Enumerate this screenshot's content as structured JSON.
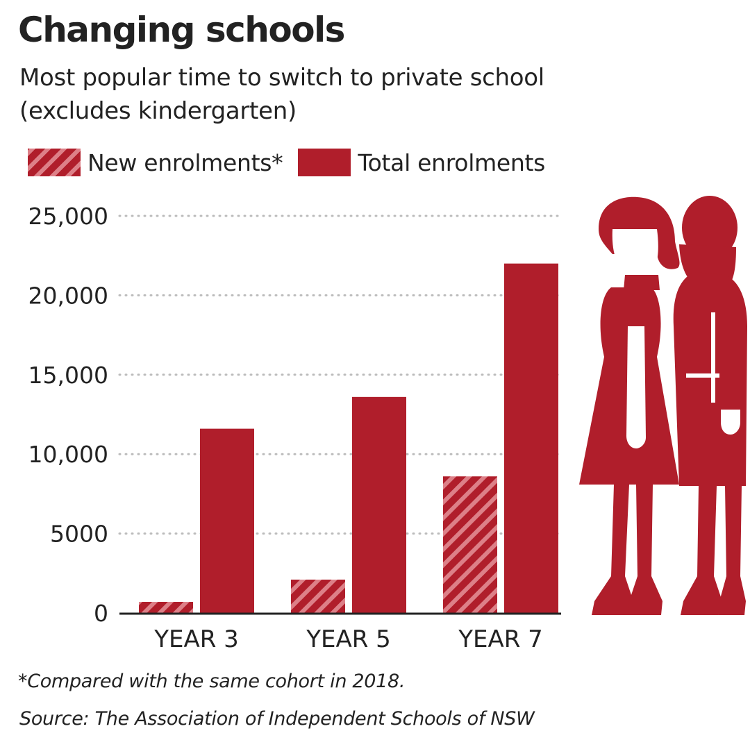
{
  "header": {
    "title": "Changing schools",
    "subtitle": "Most popular time to switch to private school (excludes kindergarten)"
  },
  "legend": {
    "new_label": "New enrolments*",
    "total_label": "Total enrolments"
  },
  "footnote": "*Compared with the same cohort in 2018.",
  "source": "Source: The Association of Independent Schools of NSW",
  "colors": {
    "bar": "#b01e2b",
    "hatch_light": "#dd8088",
    "grid": "#bbbbbb",
    "axis": "#222222",
    "illustration": "#b01e2b"
  },
  "illustration": {
    "icon": "two-students-icon"
  },
  "chart_data": {
    "type": "bar",
    "categories": [
      "YEAR 3",
      "YEAR 5",
      "YEAR 7"
    ],
    "series": [
      {
        "name": "New enrolments*",
        "values": [
          700,
          2100,
          8600
        ],
        "pattern": "hatched"
      },
      {
        "name": "Total enrolments",
        "values": [
          11600,
          13600,
          22000
        ],
        "pattern": "solid"
      }
    ],
    "ylim": [
      0,
      25000
    ],
    "yticks": [
      0,
      5000,
      10000,
      15000,
      20000,
      25000
    ],
    "ytick_labels": [
      "0",
      "5000",
      "10,000",
      "15,000",
      "20,000",
      "25,000"
    ],
    "grid": "dotted horizontal",
    "legend_position": "top-left"
  }
}
